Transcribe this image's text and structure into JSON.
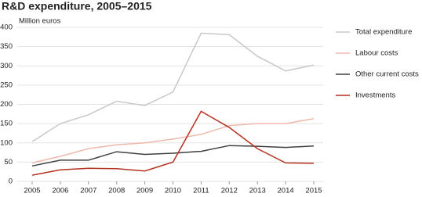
{
  "chart_data": {
    "type": "line",
    "title": "R&D expenditure, 2005–2015",
    "y_label": "Million euros",
    "x": [
      2005,
      2006,
      2007,
      2008,
      2009,
      2010,
      2011,
      2012,
      2013,
      2014,
      2015
    ],
    "xlim": [
      2005,
      2015
    ],
    "xticks": [
      2005,
      2006,
      2007,
      2008,
      2009,
      2010,
      2011,
      2012,
      2013,
      2014,
      2015
    ],
    "ylim": [
      0,
      400
    ],
    "yticks": [
      0,
      50,
      100,
      150,
      200,
      250,
      300,
      350,
      400
    ],
    "grid": true,
    "legend": "right",
    "series": [
      {
        "name": "Total expenditure",
        "color": "#c8c8c8",
        "values": [
          103,
          150,
          173,
          208,
          197,
          232,
          385,
          381,
          325,
          287,
          302
        ]
      },
      {
        "name": "Labour costs",
        "color": "#f0b8ad",
        "values": [
          48,
          65,
          85,
          95,
          100,
          110,
          122,
          145,
          150,
          150,
          163
        ]
      },
      {
        "name": "Other current costs",
        "color": "#404040",
        "values": [
          40,
          55,
          55,
          77,
          70,
          73,
          78,
          93,
          91,
          88,
          92
        ]
      },
      {
        "name": "Investments",
        "color": "#b5301f",
        "values": [
          16,
          30,
          34,
          33,
          27,
          50,
          182,
          140,
          85,
          48,
          47
        ]
      }
    ]
  }
}
